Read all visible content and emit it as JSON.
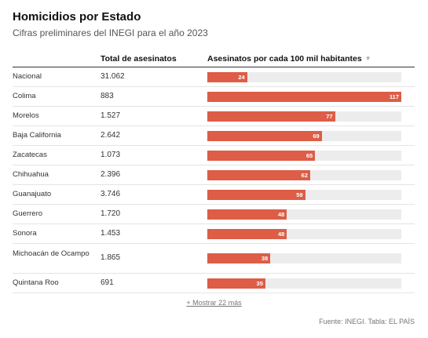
{
  "header": {
    "title": "Homicidios por Estado",
    "subtitle": "Cifras preliminares del INEGI para el año 2023"
  },
  "columns": {
    "state": "",
    "total": "Total de asesinatos",
    "rate": "Asesinatos por cada 100 mil habitantes",
    "sort_icon": "sort-down-icon"
  },
  "chart_data": {
    "type": "table",
    "xlim": [
      0,
      117
    ],
    "rows": [
      {
        "state": "Nacional",
        "total": "31.062",
        "rate": 24
      },
      {
        "state": "Colima",
        "total": "883",
        "rate": 117
      },
      {
        "state": "Morelos",
        "total": "1.527",
        "rate": 77
      },
      {
        "state": "Baja California",
        "total": "2.642",
        "rate": 69
      },
      {
        "state": "Zacatecas",
        "total": "1.073",
        "rate": 65
      },
      {
        "state": "Chihuahua",
        "total": "2.396",
        "rate": 62
      },
      {
        "state": "Guanajuato",
        "total": "3.746",
        "rate": 59
      },
      {
        "state": "Guerrero",
        "total": "1.720",
        "rate": 48
      },
      {
        "state": "Sonora",
        "total": "1.453",
        "rate": 48
      },
      {
        "state": "Michoacán de Ocampo",
        "total": "1.865",
        "rate": 38
      },
      {
        "state": "Quintana Roo",
        "total": "691",
        "rate": 35
      }
    ],
    "bar_color": "#dd5d47",
    "track_color": "#ececec"
  },
  "footer": {
    "more_label": "+ Mostrar 22 más",
    "source": "Fuente: INEGI. Tabla: EL PAÍS"
  }
}
